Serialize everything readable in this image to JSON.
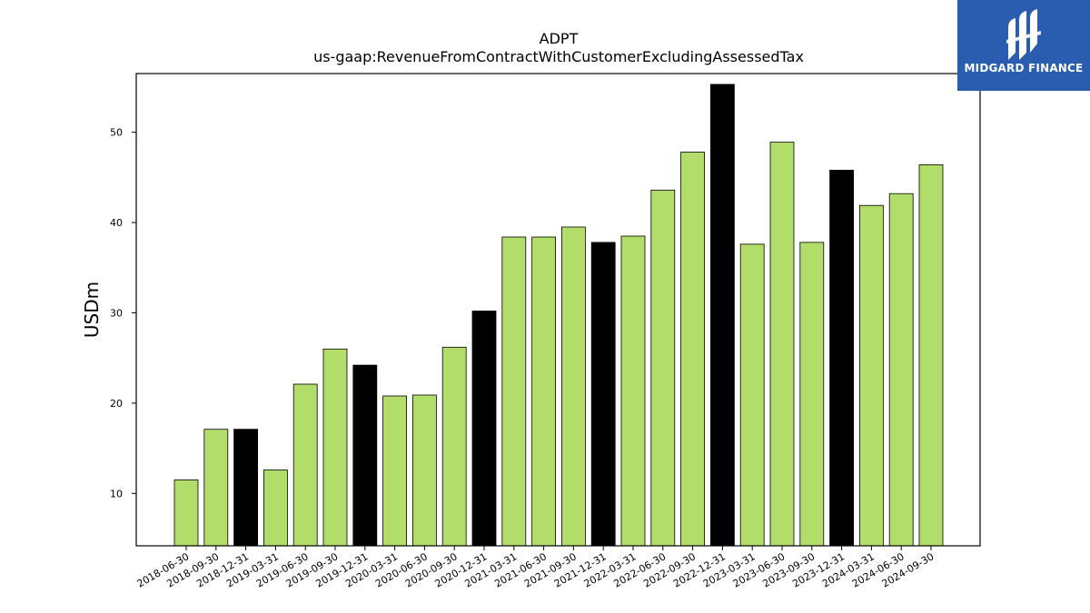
{
  "chart_data": {
    "type": "bar",
    "title": "ADPT",
    "subtitle": "us-gaap:RevenueFromContractWithCustomerExcludingAssessedTax",
    "ylabel": "USDm",
    "ylim": [
      4.2,
      56.5
    ],
    "yticks": [
      10,
      20,
      30,
      40,
      50
    ],
    "grid": false,
    "categories": [
      "2018-06-30",
      "2018-09-30",
      "2018-12-31",
      "2019-03-31",
      "2019-06-30",
      "2019-09-30",
      "2019-12-31",
      "2020-03-31",
      "2020-06-30",
      "2020-09-30",
      "2020-12-31",
      "2021-03-31",
      "2021-06-30",
      "2021-09-30",
      "2021-12-31",
      "2022-03-31",
      "2022-06-30",
      "2022-09-30",
      "2022-12-31",
      "2023-03-31",
      "2023-06-30",
      "2023-09-30",
      "2023-12-31",
      "2024-03-31",
      "2024-06-30",
      "2024-09-30"
    ],
    "values": [
      11.5,
      17.1,
      17.1,
      12.6,
      22.1,
      26.0,
      24.2,
      20.8,
      20.9,
      26.2,
      30.2,
      38.4,
      38.4,
      39.5,
      37.8,
      38.5,
      43.6,
      47.8,
      55.3,
      37.6,
      48.9,
      37.8,
      45.8,
      41.9,
      43.2,
      46.4
    ],
    "colors": {
      "quarter": "#b2dd6a",
      "year_end": "#000000",
      "edge": "#000000"
    }
  },
  "logo": {
    "text": "MIDGARD FINANCE",
    "name": "midgard-finance-logo",
    "color": "#2a5db0"
  }
}
